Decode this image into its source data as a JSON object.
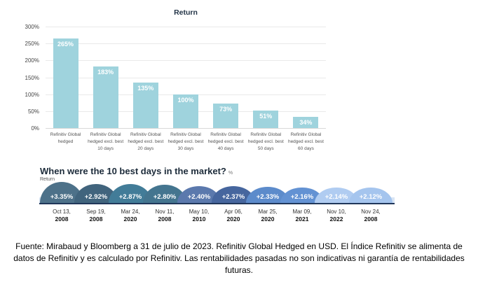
{
  "chart_data": [
    {
      "type": "bar",
      "title": "Return",
      "categories": [
        "Refinitiv Global hedged",
        "Refinitiv Global hedged excl. best 10 days",
        "Refinitiv Global hedged excl. best 20 days",
        "Refinitiv Global hedged excl. best 30 days",
        "Refinitiv Global hedged excl. best 40 days",
        "Refinitiv Global hedged excl. best 50 days",
        "Refinitiv Global hedged excl. best 60 days"
      ],
      "values": [
        265,
        183,
        135,
        100,
        73,
        51,
        34
      ],
      "unit": "%",
      "xlabel": "",
      "ylabel": "",
      "ylim": [
        0,
        300
      ],
      "y_ticks": [
        0,
        50,
        100,
        150,
        200,
        250,
        300
      ],
      "grid": true,
      "legend": false,
      "bar_color": "#9fd3dd"
    },
    {
      "type": "bar",
      "title": "When were the 10 best days in the market?",
      "ylabel": "Return %",
      "categories": [
        "Oct 13, 2008",
        "Sep 19, 2008",
        "Mar 24, 2020",
        "Nov 11, 2008",
        "May 10, 2010",
        "Apr 06, 2020",
        "Mar 25, 2020",
        "Mar 09, 2021",
        "Nov 10, 2022",
        "Nov 24, 2008"
      ],
      "values": [
        3.35,
        2.92,
        2.87,
        2.8,
        2.4,
        2.37,
        2.33,
        2.16,
        2.14,
        2.12
      ],
      "unit": "%",
      "legend": false
    }
  ],
  "bar_chart": {
    "title": "Return",
    "bar_color": "#9fd3dd",
    "y_ticks": [
      "300%",
      "250%",
      "200%",
      "150%",
      "100%",
      "50%",
      "0%"
    ],
    "bars": [
      {
        "label": "265%",
        "value": 265,
        "category": "Refinitiv Global\nhedged"
      },
      {
        "label": "183%",
        "value": 183,
        "category": "Refinitiv Global\nhedged excl. best\n10 days"
      },
      {
        "label": "135%",
        "value": 135,
        "category": "Refinitiv Global\nhedged excl. best\n20 days"
      },
      {
        "label": "100%",
        "value": 100,
        "category": "Refinitiv Global\nhedged excl. best\n30 days"
      },
      {
        "label": "73%",
        "value": 73,
        "category": "Refinitiv Global\nhedged excl. best\n40 days"
      },
      {
        "label": "51%",
        "value": 51,
        "category": "Refinitiv Global\nhedged excl. best\n50 days"
      },
      {
        "label": "34%",
        "value": 34,
        "category": "Refinitiv Global\nhedged excl. best\n60 days"
      }
    ]
  },
  "best_days": {
    "title": "When were the 10 best days in the market?",
    "title_unit": "%",
    "axis_label": "Return",
    "items": [
      {
        "value": "+3.35%",
        "v": 3.35,
        "date1": "Oct 13,",
        "date2": "2008",
        "color": "#4d7189"
      },
      {
        "value": "+2.92%",
        "v": 2.92,
        "date1": "Sep 19,",
        "date2": "2008",
        "color": "#41647d"
      },
      {
        "value": "+2.87%",
        "v": 2.87,
        "date1": "Mar 24,",
        "date2": "2020",
        "color": "#427c98"
      },
      {
        "value": "+2.80%",
        "v": 2.8,
        "date1": "Nov 11,",
        "date2": "2008",
        "color": "#44758f"
      },
      {
        "value": "+2.40%",
        "v": 2.4,
        "date1": "May 10,",
        "date2": "2010",
        "color": "#5b79ad"
      },
      {
        "value": "+2.37%",
        "v": 2.37,
        "date1": "Apr 06,",
        "date2": "2020",
        "color": "#46669e"
      },
      {
        "value": "+2.33%",
        "v": 2.33,
        "date1": "Mar 25,",
        "date2": "2020",
        "color": "#5c8bcb"
      },
      {
        "value": "+2.16%",
        "v": 2.16,
        "date1": "Mar 09,",
        "date2": "2021",
        "color": "#6392d3"
      },
      {
        "value": "+2.14%",
        "v": 2.14,
        "date1": "Nov 10,",
        "date2": "2022",
        "color": "#b0ccf1"
      },
      {
        "value": "+2.12%",
        "v": 2.12,
        "date1": "Nov 24,",
        "date2": "2008",
        "color": "#a5c5ee"
      }
    ]
  },
  "footer": {
    "text": "Fuente: Mirabaud y Bloomberg a 31 de julio de 2023. Refinitiv Global Hedged en USD. El Índice Refinitiv se alimenta de datos de Refinitiv y es calculado por Refinitiv. Las rentabilidades pasadas no son indicativas ni garantía de rentabilidades futuras."
  }
}
